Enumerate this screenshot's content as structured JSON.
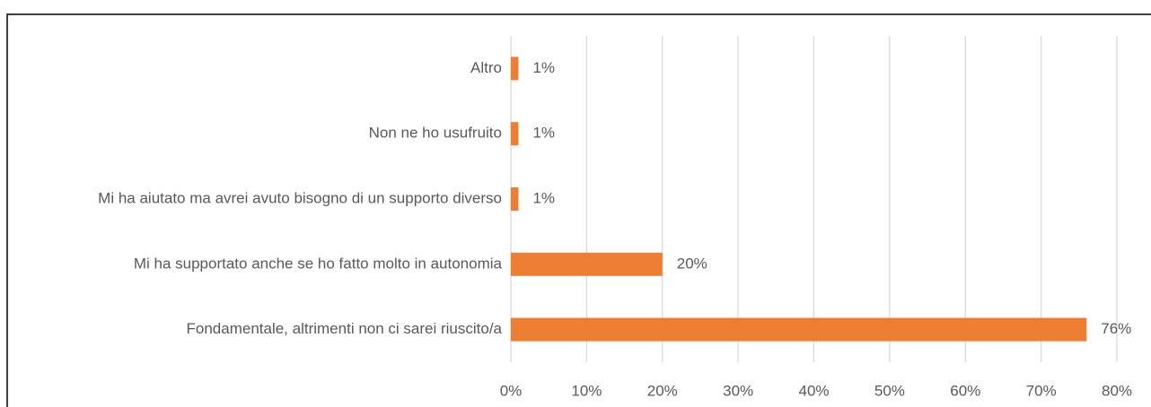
{
  "chart_data": {
    "type": "bar",
    "orientation": "horizontal",
    "categories": [
      "Altro",
      "Non ne ho usufruito",
      "Mi ha aiutato ma avrei avuto bisogno di un supporto diverso",
      "Mi ha supportato anche se ho fatto molto in autonomia",
      "Fondamentale, altrimenti non ci sarei riuscito/a"
    ],
    "values": [
      1,
      1,
      1,
      20,
      76
    ],
    "value_labels": [
      "1%",
      "1%",
      "1%",
      "20%",
      "76%"
    ],
    "color": "#ed7d31",
    "xlim": [
      0,
      80
    ],
    "xticks": [
      {
        "value": 0,
        "label": "0%"
      },
      {
        "value": 10,
        "label": "10%"
      },
      {
        "value": 20,
        "label": "20%"
      },
      {
        "value": 30,
        "label": "30%"
      },
      {
        "value": 40,
        "label": "40%"
      },
      {
        "value": 50,
        "label": "50%"
      },
      {
        "value": 60,
        "label": "60%"
      },
      {
        "value": 70,
        "label": "70%"
      },
      {
        "value": 80,
        "label": "80%"
      }
    ],
    "grid": true
  }
}
